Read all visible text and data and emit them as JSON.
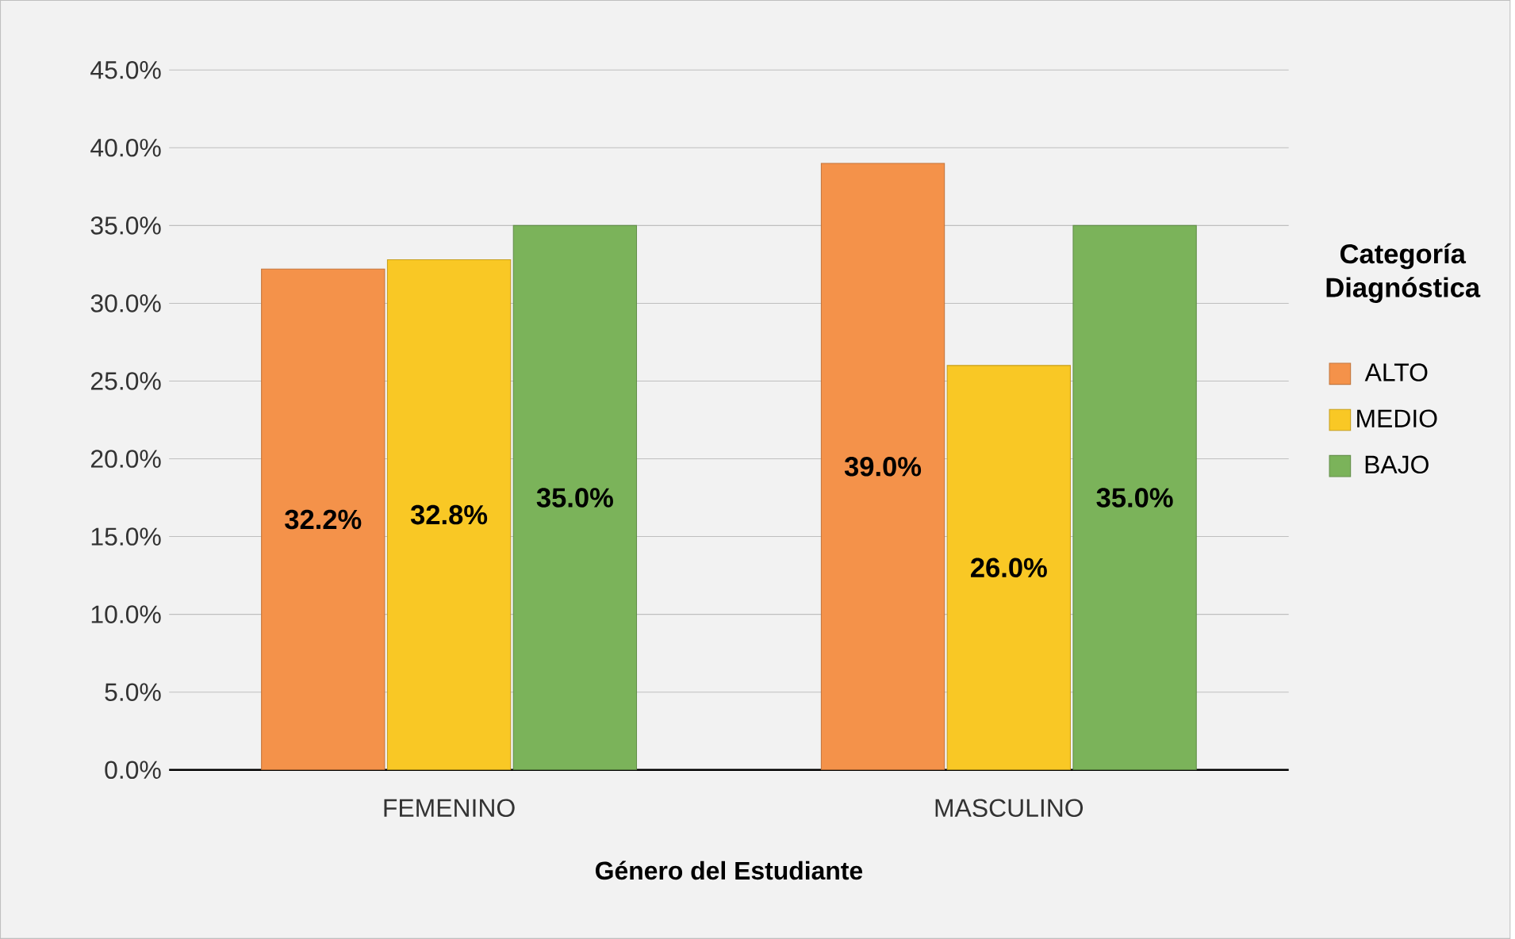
{
  "chart_data": {
    "type": "bar",
    "xlabel": "Género del Estudiante",
    "legend_title": "Categoría Diagnóstica",
    "categories": [
      "FEMENINO",
      "MASCULINO"
    ],
    "series": [
      {
        "name": "ALTO",
        "color": "#f4924a",
        "values": [
          32.2,
          39.0
        ],
        "value_labels": [
          "32.2%",
          "39.0%"
        ]
      },
      {
        "name": "MEDIO",
        "color": "#f9c825",
        "values": [
          32.8,
          26.0
        ],
        "value_labels": [
          "32.8%",
          "26.0%"
        ]
      },
      {
        "name": "BAJO",
        "color": "#7bb35a",
        "values": [
          35.0,
          35.0
        ],
        "value_labels": [
          "35.0%",
          "35.0%"
        ]
      }
    ],
    "ylim": [
      0,
      45
    ],
    "yticks": [
      {
        "value": 0,
        "label": "0.0%"
      },
      {
        "value": 5,
        "label": "5.0%"
      },
      {
        "value": 10,
        "label": "10.0%"
      },
      {
        "value": 15,
        "label": "15.0%"
      },
      {
        "value": 20,
        "label": "20.0%"
      },
      {
        "value": 25,
        "label": "25.0%"
      },
      {
        "value": 30,
        "label": "30.0%"
      },
      {
        "value": 35,
        "label": "35.0%"
      },
      {
        "value": 40,
        "label": "40.0%"
      },
      {
        "value": 45,
        "label": "45.0%"
      }
    ],
    "grid": "y",
    "legend": "right"
  }
}
